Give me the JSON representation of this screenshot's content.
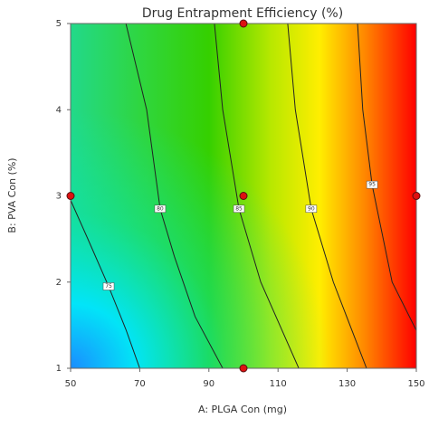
{
  "chart_data": {
    "type": "contour",
    "title": "Drug Entrapment Efficiency (%)",
    "x_label": "A: PLGA Con (mg)",
    "y_label": "B: PVA Con (%)",
    "xlim": [
      50,
      150
    ],
    "xticks": [
      50,
      70,
      90,
      110,
      130,
      150
    ],
    "ylim": [
      1,
      5
    ],
    "yticks": [
      1,
      2,
      3,
      4,
      5
    ],
    "line_color": "#222222",
    "point_color": "#dd1111",
    "contours": [
      {
        "level": 75,
        "x": [
          50,
          55,
          61,
          66,
          70
        ],
        "y": [
          2.95,
          2.5,
          1.95,
          1.45,
          1
        ],
        "label_index": 2
      },
      {
        "level": 80,
        "x": [
          66,
          69,
          72,
          75.9,
          80,
          86,
          94
        ],
        "y": [
          5,
          4.5,
          4,
          2.85,
          2.3,
          1.6,
          1
        ],
        "label_index": 3
      },
      {
        "level": 85,
        "x": [
          91.6,
          94,
          98.7,
          105,
          116
        ],
        "y": [
          5,
          4,
          2.85,
          2,
          1
        ],
        "label_index": 2
      },
      {
        "level": 90,
        "x": [
          112.8,
          115,
          119.6,
          126,
          135.6
        ],
        "y": [
          5,
          4,
          2.85,
          2,
          1
        ],
        "label_index": 2
      },
      {
        "level": 95,
        "x": [
          133,
          134.5,
          137.2,
          143,
          150
        ],
        "y": [
          5,
          4,
          3.13,
          2,
          1.44
        ],
        "label_index": 2
      }
    ],
    "points": {
      "x": [
        50,
        100,
        100,
        100,
        150
      ],
      "y": [
        3,
        5,
        3,
        1,
        3
      ]
    }
  }
}
